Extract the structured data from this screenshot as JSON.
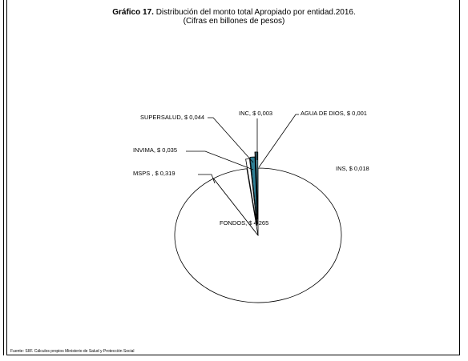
{
  "chart_data": {
    "type": "pie",
    "title_prefix": "Gráfico 17.",
    "title": "Distribución del monto total Apropiado por entidad.2016.",
    "subtitle": "(Cifras en billones de pesos)",
    "source": "Fuente: SIIF. Cálculos propios Ministerio de Salud y Protección Social",
    "slices": [
      {
        "label": "FONDOS",
        "display_label": "FONDOS, $ 4,265",
        "value": 4.265,
        "color": "#ffffff"
      },
      {
        "label": "MSPS",
        "display_label": "MSPS , $ 0,319",
        "value": 0.319,
        "color": "#ffffff"
      },
      {
        "label": "INVIMA",
        "display_label": "INVIMA, $ 0,035",
        "value": 0.035,
        "color": "#ffffff"
      },
      {
        "label": "SUPERSALUD",
        "display_label": "SUPERSALUD, $ 0,044",
        "value": 0.044,
        "color": "#2e7f95"
      },
      {
        "label": "INC",
        "display_label": "INC, $ 0,003",
        "value": 0.003,
        "color": "#d9d9d9"
      },
      {
        "label": "AGUA DE DIOS",
        "display_label": "AGUA DE DIOS, $ 0,001",
        "value": 0.001,
        "color": "#ffffff"
      },
      {
        "label": "INS",
        "display_label": "INS, $ 0,018",
        "value": 0.018,
        "color": "#6ab4c6"
      }
    ]
  }
}
